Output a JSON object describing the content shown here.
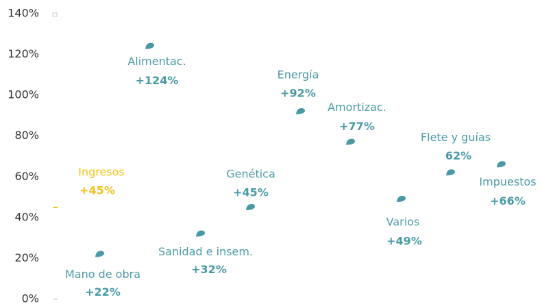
{
  "chart_data": {
    "type": "scatter",
    "categories": [
      "Mano de obra",
      "Alimentac.",
      "Sanidad e insem.",
      "Genética",
      "Energía",
      "Amortizac.",
      "Varios",
      "Flete y guías",
      "Impuestos"
    ],
    "values": [
      22,
      124,
      32,
      45,
      92,
      77,
      49,
      62,
      66
    ],
    "value_labels": [
      "+22%",
      "+124%",
      "+32%",
      "+45%",
      "+92%",
      "+77%",
      "+49%",
      "62%",
      "+66%"
    ],
    "color": "#4a9aa6",
    "reference": {
      "name": "Ingresos",
      "value": 45,
      "value_label": "+45%",
      "color": "#f2c21b"
    },
    "ylim": [
      0,
      140
    ],
    "yticks": [
      {
        "value": 0,
        "label": "0%"
      },
      {
        "value": 20,
        "label": "20%"
      },
      {
        "value": 40,
        "label": "40%"
      },
      {
        "value": 60,
        "label": "60%"
      },
      {
        "value": 80,
        "label": "80%"
      },
      {
        "value": 100,
        "label": "100%"
      },
      {
        "value": 120,
        "label": "120%"
      },
      {
        "value": 140,
        "label": "140%"
      }
    ]
  }
}
